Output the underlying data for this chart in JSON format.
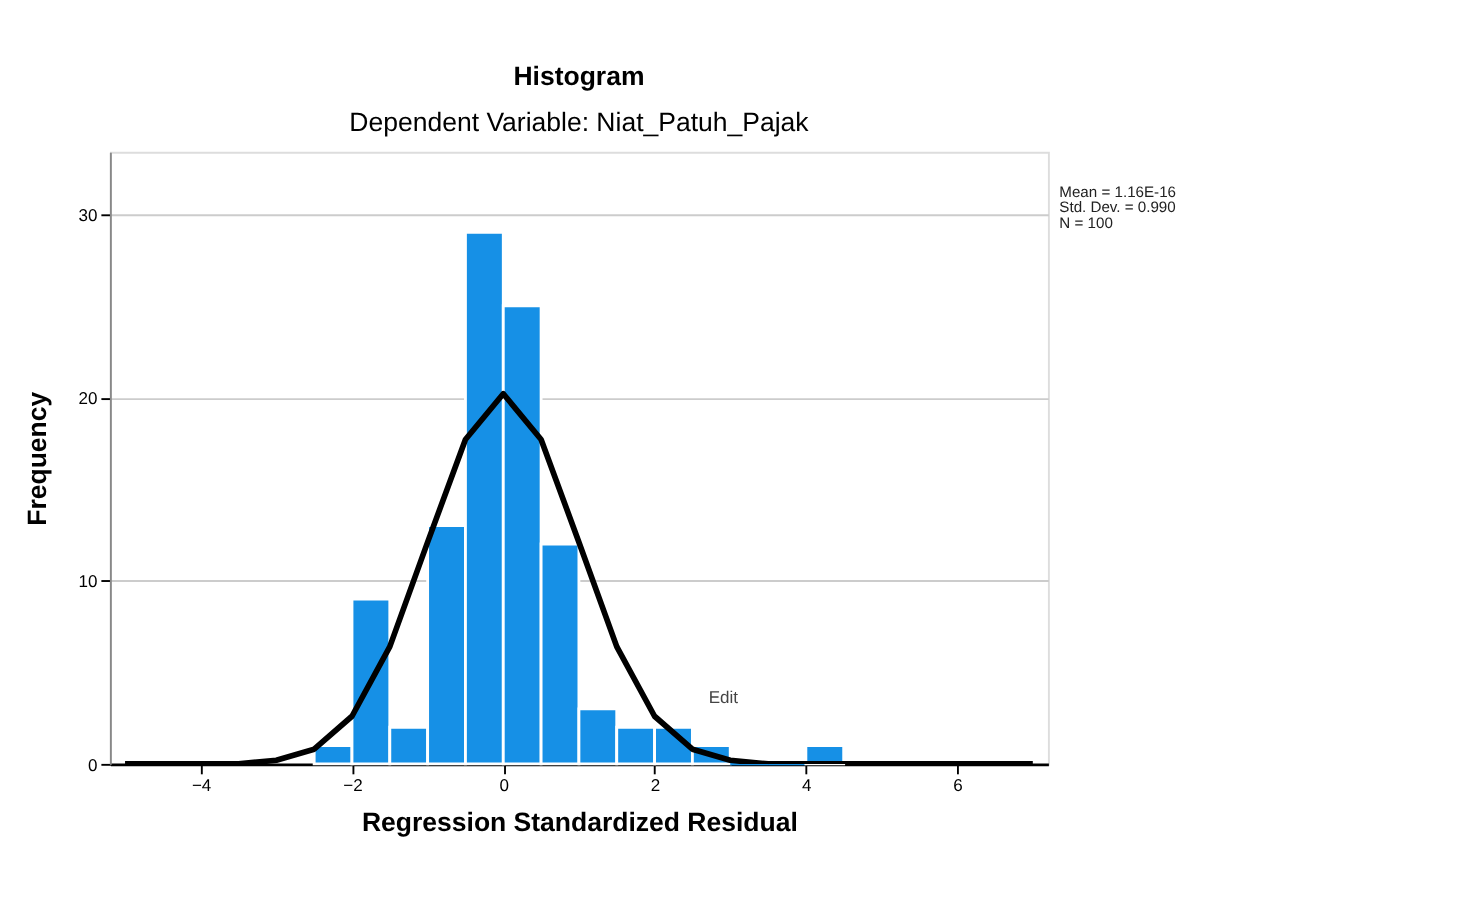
{
  "chart_data": {
    "type": "histogram",
    "title": "Histogram",
    "subtitle": "Dependent Variable: Niat_Patuh_Pajak",
    "xlabel": "Regression Standardized Residual",
    "ylabel": "Frequency",
    "bins": [
      -2.5,
      -2,
      -1.5,
      -1,
      -0.5,
      0,
      0.5,
      1,
      1.5,
      2,
      2.5,
      3,
      3.5,
      4,
      4.5
    ],
    "values": [
      1,
      9,
      2,
      13,
      29,
      25,
      12,
      3,
      2,
      2,
      1,
      0,
      0,
      1
    ],
    "color": "#1690e6",
    "series": [
      {
        "type": "line",
        "color": "#000000",
        "x": [
          -5,
          -4,
          -3.5,
          -3,
          -2.5,
          -2,
          -1.5,
          -1,
          -0.5,
          0,
          0.5,
          1,
          1.5,
          2,
          2.5,
          3,
          3.5,
          4,
          5,
          6,
          7
        ],
        "values": [
          0,
          0,
          0,
          0.2,
          0.8,
          2.6,
          6.4,
          12.1,
          17.7,
          20.2,
          17.7,
          12.1,
          6.4,
          2.6,
          0.8,
          0.2,
          0,
          0,
          0,
          0,
          0
        ]
      }
    ],
    "marker": "none",
    "line_style": "solid",
    "xlim": [
      -5.2,
      7.2
    ],
    "xticks": [
      -4,
      -2,
      0,
      2,
      4,
      6
    ],
    "ylim": [
      0,
      33.4
    ],
    "yticks": [
      0,
      10,
      20,
      30
    ],
    "grid": "y",
    "annotations": [
      "Mean = 1.16E-16",
      "Std. Dev. = 0.990",
      "N = 100",
      "Edit"
    ]
  }
}
